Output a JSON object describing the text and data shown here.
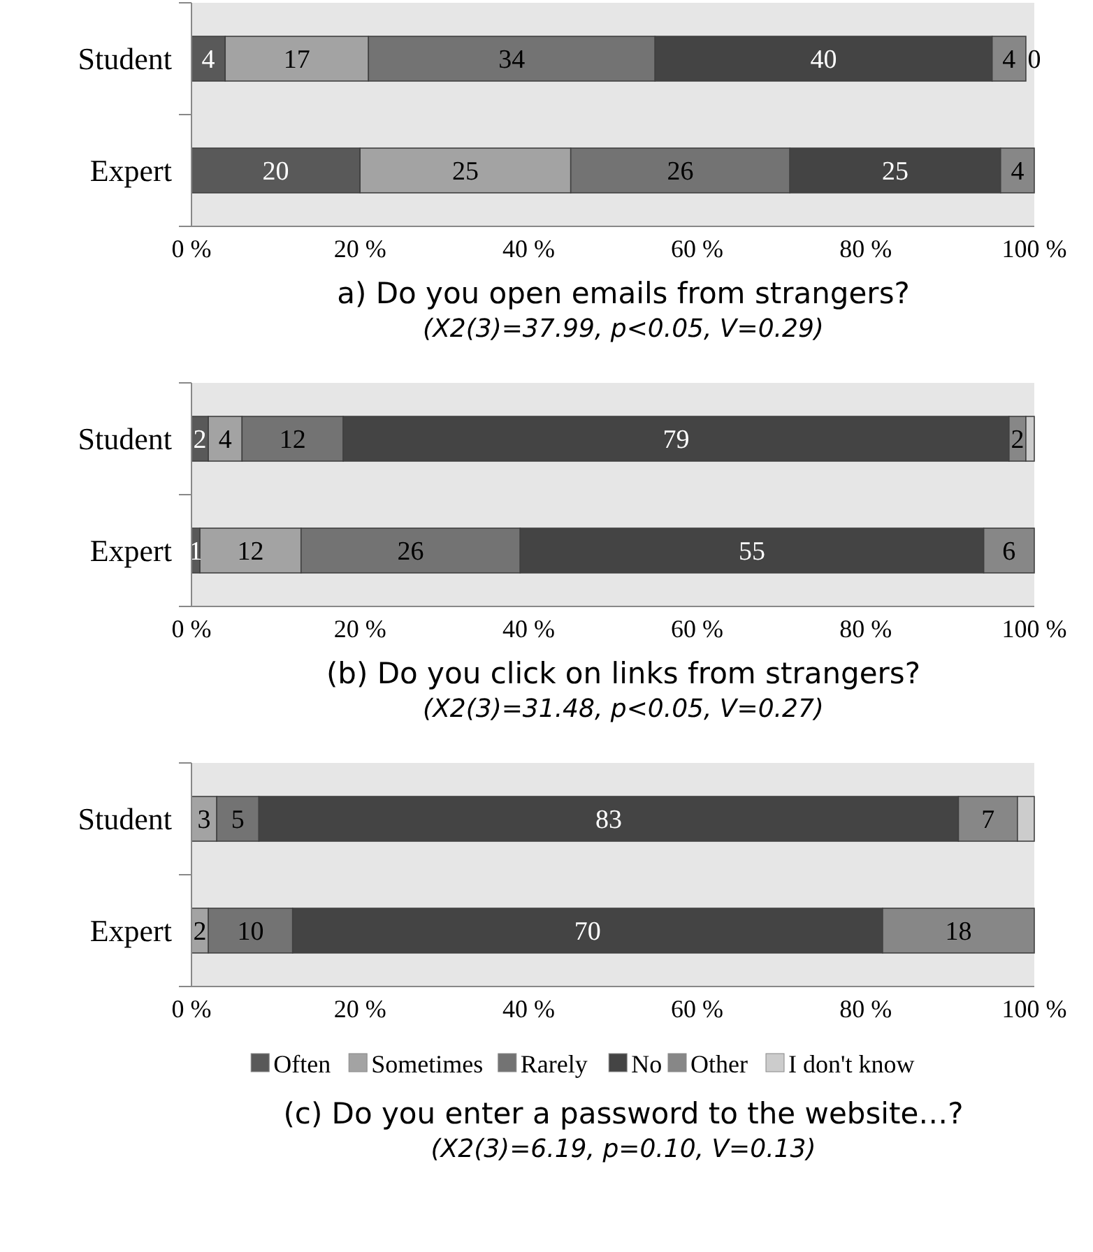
{
  "chart_data": [
    {
      "type": "bar",
      "orientation": "horizontal",
      "stacked": true,
      "title": "a) Do you open emails from strangers?",
      "subtitle": "(X2(3)=37.99, p<0.05, V=0.29)",
      "categories": [
        "Student",
        "Expert"
      ],
      "xlim": [
        0,
        100
      ],
      "xticks": [
        {
          "value": 0,
          "label": "0 %"
        },
        {
          "value": 20,
          "label": "20 %"
        },
        {
          "value": 40,
          "label": "40 %"
        },
        {
          "value": 60,
          "label": "60 %"
        },
        {
          "value": 80,
          "label": "80 %"
        },
        {
          "value": 100,
          "label": "100 %"
        }
      ],
      "legend": false,
      "grid": false,
      "series": [
        {
          "color": "#595959",
          "values": [
            4,
            20
          ],
          "value_labels": [
            "4",
            "20"
          ]
        },
        {
          "color": "#a3a3a3",
          "values": [
            17,
            25
          ],
          "value_labels": [
            "17",
            "25"
          ]
        },
        {
          "color": "#737373",
          "values": [
            34,
            26
          ],
          "value_labels": [
            "34",
            "26"
          ]
        },
        {
          "color": "#444444",
          "values": [
            40,
            25
          ],
          "value_labels": [
            "40",
            "25"
          ]
        },
        {
          "color": "#878787",
          "values": [
            4,
            4
          ],
          "value_labels": [
            "4",
            "4"
          ]
        },
        {
          "color": "#cccccc",
          "values": [
            0,
            0
          ],
          "value_labels": [
            "0",
            null
          ]
        }
      ]
    },
    {
      "type": "bar",
      "orientation": "horizontal",
      "stacked": true,
      "title": "(b) Do you click on links from strangers?",
      "subtitle": "(X2(3)=31.48, p<0.05, V=0.27)",
      "categories": [
        "Student",
        "Expert"
      ],
      "xlim": [
        0,
        100
      ],
      "xticks": [
        {
          "value": 0,
          "label": "0 %"
        },
        {
          "value": 20,
          "label": "20 %"
        },
        {
          "value": 40,
          "label": "40 %"
        },
        {
          "value": 60,
          "label": "60 %"
        },
        {
          "value": 80,
          "label": "80 %"
        },
        {
          "value": 100,
          "label": "100 %"
        }
      ],
      "legend": false,
      "grid": false,
      "series": [
        {
          "color": "#595959",
          "values": [
            2,
            1
          ],
          "value_labels": [
            "2",
            "1"
          ]
        },
        {
          "color": "#a3a3a3",
          "values": [
            4,
            12
          ],
          "value_labels": [
            "4",
            "12"
          ]
        },
        {
          "color": "#737373",
          "values": [
            12,
            26
          ],
          "value_labels": [
            "12",
            "26"
          ]
        },
        {
          "color": "#444444",
          "values": [
            79,
            55
          ],
          "value_labels": [
            "79",
            "55"
          ]
        },
        {
          "color": "#878787",
          "values": [
            2,
            6
          ],
          "value_labels": [
            "2",
            "6"
          ]
        },
        {
          "color": "#cccccc",
          "values": [
            1,
            0
          ],
          "value_labels": [
            null,
            null
          ]
        }
      ]
    },
    {
      "type": "bar",
      "orientation": "horizontal",
      "stacked": true,
      "title": "(c) Do you enter a password to the website…?",
      "subtitle": "(X2(3)=6.19, p=0.10, V=0.13)",
      "categories": [
        "Student",
        "Expert"
      ],
      "xlim": [
        0,
        100
      ],
      "xticks": [
        {
          "value": 0,
          "label": "0 %"
        },
        {
          "value": 20,
          "label": "20 %"
        },
        {
          "value": 40,
          "label": "40 %"
        },
        {
          "value": 60,
          "label": "60 %"
        },
        {
          "value": 80,
          "label": "80 %"
        },
        {
          "value": 100,
          "label": "100 %"
        }
      ],
      "legend": "bottom",
      "grid": false,
      "series": [
        {
          "name": "Often",
          "color": "#595959",
          "values": [
            0,
            0
          ],
          "value_labels": [
            null,
            null
          ]
        },
        {
          "name": "Sometimes",
          "color": "#a3a3a3",
          "values": [
            3,
            2
          ],
          "value_labels": [
            "3",
            "2"
          ]
        },
        {
          "name": "Rarely",
          "color": "#737373",
          "values": [
            5,
            10
          ],
          "value_labels": [
            "5",
            "10"
          ]
        },
        {
          "name": "No",
          "color": "#444444",
          "values": [
            83,
            70
          ],
          "value_labels": [
            "83",
            "70"
          ]
        },
        {
          "name": "Other",
          "color": "#878787",
          "values": [
            7,
            18
          ],
          "value_labels": [
            "7",
            "18"
          ]
        },
        {
          "name": "I don't know",
          "color": "#cccccc",
          "values": [
            2,
            0
          ],
          "value_labels": [
            null,
            null
          ]
        }
      ]
    }
  ]
}
